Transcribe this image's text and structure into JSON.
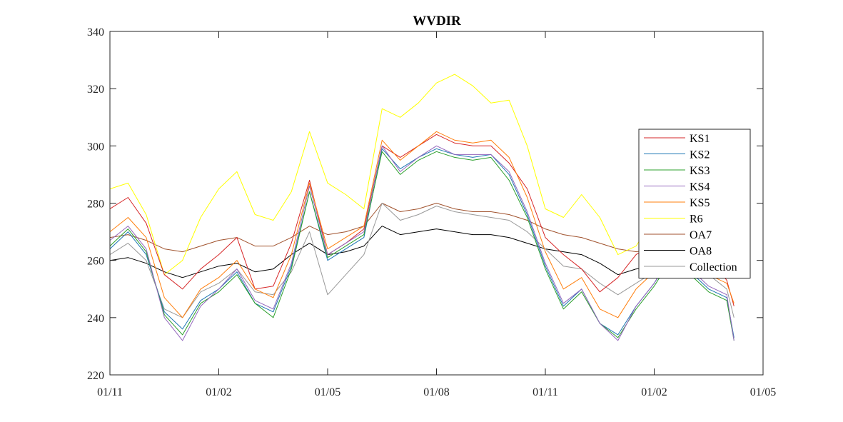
{
  "chart_data": {
    "type": "line",
    "title": "WVDIR",
    "xlabel": "",
    "ylabel": "",
    "x_ticks": [
      "01/11",
      "01/02",
      "01/05",
      "01/08",
      "01/11",
      "01/02",
      "01/05"
    ],
    "x_range": [
      0,
      18
    ],
    "ylim": [
      220,
      340
    ],
    "y_ticks": [
      220,
      240,
      260,
      280,
      300,
      320,
      340
    ],
    "grid": false,
    "legend_position": "right",
    "x": [
      0,
      0.5,
      1,
      1.5,
      2,
      2.5,
      3,
      3.5,
      4,
      4.5,
      5,
      5.5,
      6,
      6.5,
      7,
      7.5,
      8,
      8.5,
      9,
      9.5,
      10,
      10.5,
      11,
      11.5,
      12,
      12.5,
      13,
      13.5,
      14,
      14.5,
      15,
      15.5,
      16,
      16.5,
      17,
      17.2
    ],
    "series": [
      {
        "name": "KS1",
        "color": "#d62728",
        "values": [
          278,
          282,
          273,
          255,
          250,
          257,
          262,
          268,
          250,
          251,
          266,
          288,
          262,
          266,
          271,
          300,
          296,
          300,
          304,
          301,
          300,
          300,
          294,
          285,
          268,
          262,
          257,
          249,
          254,
          262,
          266,
          275,
          268,
          262,
          253,
          244
        ]
      },
      {
        "name": "KS2",
        "color": "#1f77b4",
        "values": [
          264,
          270,
          262,
          242,
          236,
          246,
          250,
          256,
          245,
          242,
          258,
          284,
          260,
          264,
          268,
          299,
          292,
          296,
          299,
          297,
          296,
          297,
          290,
          276,
          258,
          244,
          250,
          238,
          234,
          244,
          252,
          262,
          256,
          250,
          247,
          233
        ]
      },
      {
        "name": "KS3",
        "color": "#2ca02c",
        "values": [
          265,
          271,
          263,
          241,
          234,
          245,
          249,
          255,
          245,
          240,
          257,
          284,
          261,
          265,
          269,
          298,
          290,
          295,
          298,
          296,
          295,
          296,
          288,
          275,
          257,
          243,
          249,
          238,
          233,
          243,
          251,
          261,
          255,
          249,
          246,
          232
        ]
      },
      {
        "name": "KS4",
        "color": "#9467bd",
        "values": [
          267,
          272,
          264,
          240,
          232,
          244,
          250,
          257,
          246,
          243,
          259,
          286,
          262,
          266,
          270,
          300,
          291,
          296,
          300,
          297,
          297,
          297,
          291,
          277,
          259,
          245,
          250,
          238,
          232,
          244,
          252,
          263,
          257,
          251,
          248,
          232
        ]
      },
      {
        "name": "KS5",
        "color": "#ff7f0e",
        "values": [
          270,
          275,
          268,
          247,
          240,
          250,
          254,
          260,
          250,
          247,
          262,
          287,
          264,
          268,
          272,
          302,
          295,
          300,
          305,
          302,
          301,
          302,
          296,
          282,
          263,
          250,
          254,
          243,
          240,
          250,
          256,
          266,
          260,
          255,
          252,
          245
        ]
      },
      {
        "name": "R6",
        "color": "#ffff00",
        "values": [
          285,
          287,
          276,
          255,
          260,
          275,
          285,
          291,
          276,
          274,
          284,
          305,
          287,
          283,
          278,
          313,
          310,
          315,
          322,
          325,
          321,
          315,
          316,
          300,
          278,
          275,
          283,
          275,
          262,
          265,
          275,
          280,
          272,
          268,
          262,
          258
        ]
      },
      {
        "name": "OA7",
        "color": "#a0522d",
        "values": [
          268,
          269,
          267,
          264,
          263,
          265,
          267,
          268,
          265,
          265,
          268,
          272,
          269,
          270,
          272,
          280,
          277,
          278,
          280,
          278,
          277,
          277,
          276,
          274,
          271,
          269,
          268,
          266,
          264,
          263,
          264,
          266,
          265,
          263,
          262,
          262
        ]
      },
      {
        "name": "OA8",
        "color": "#000000",
        "values": [
          260,
          261,
          259,
          256,
          254,
          256,
          258,
          259,
          256,
          257,
          262,
          266,
          262,
          263,
          265,
          272,
          269,
          270,
          271,
          270,
          269,
          269,
          268,
          266,
          264,
          263,
          262,
          259,
          255,
          257,
          258,
          260,
          259,
          258,
          257,
          257
        ]
      },
      {
        "name": "Collection",
        "color": "#999999",
        "values": [
          262,
          266,
          260,
          243,
          240,
          249,
          252,
          257,
          249,
          248,
          256,
          270,
          248,
          255,
          262,
          280,
          274,
          276,
          279,
          277,
          276,
          275,
          274,
          270,
          264,
          258,
          257,
          252,
          248,
          252,
          256,
          262,
          258,
          255,
          250,
          240
        ]
      }
    ]
  }
}
